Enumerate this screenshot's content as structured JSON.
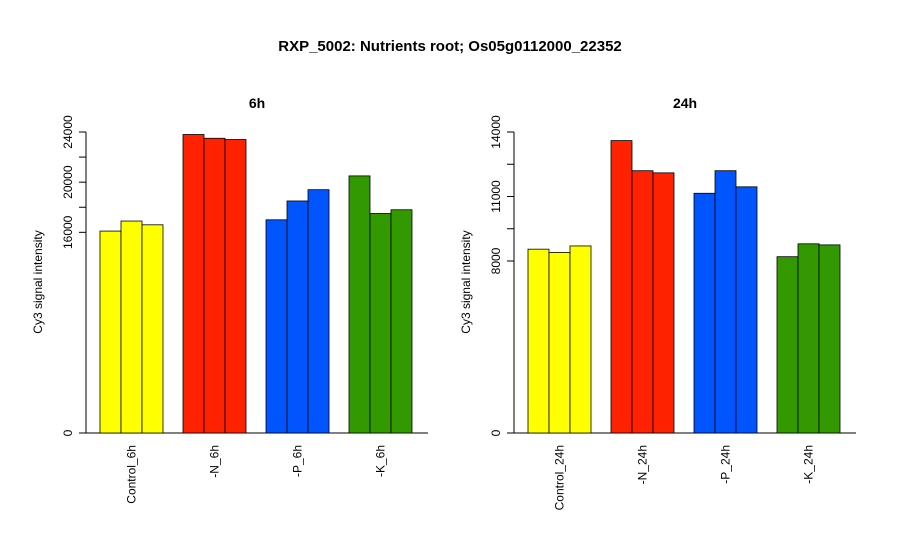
{
  "main_title": "RXP_5002: Nutrients root; Os05g0112000_22352",
  "chart_data": [
    {
      "type": "bar",
      "title": "6h",
      "ylabel": "Cy3 signal intensity",
      "xlabel": "",
      "ylim": [
        0,
        24000
      ],
      "yticks": [
        0,
        16000,
        20000,
        24000
      ],
      "categories": [
        "Control_6h",
        "-N_6h",
        "-P_6h",
        "-K_6h"
      ],
      "group_colors": [
        "#ffff00",
        "#ff2200",
        "#0055ff",
        "#339900"
      ],
      "values": [
        [
          16100,
          16900,
          16600
        ],
        [
          23800,
          23500,
          23400
        ],
        [
          17000,
          18500,
          19400
        ],
        [
          20500,
          17500,
          17800
        ]
      ],
      "grid": false,
      "legend": "none"
    },
    {
      "type": "bar",
      "title": "24h",
      "ylabel": "Cy3 signal intensity",
      "xlabel": "",
      "ylim": [
        0,
        14000
      ],
      "yticks": [
        0,
        8000,
        11000,
        14000
      ],
      "categories": [
        "Control_24h",
        "-N_24h",
        "-P_24h",
        "-K_24h"
      ],
      "group_colors": [
        "#ffff00",
        "#ff2200",
        "#0055ff",
        "#339900"
      ],
      "values": [
        [
          8550,
          8400,
          8700
        ],
        [
          13600,
          12200,
          12100
        ],
        [
          11150,
          12200,
          11450
        ],
        [
          8200,
          8800,
          8750
        ]
      ],
      "grid": false,
      "legend": "none"
    }
  ]
}
